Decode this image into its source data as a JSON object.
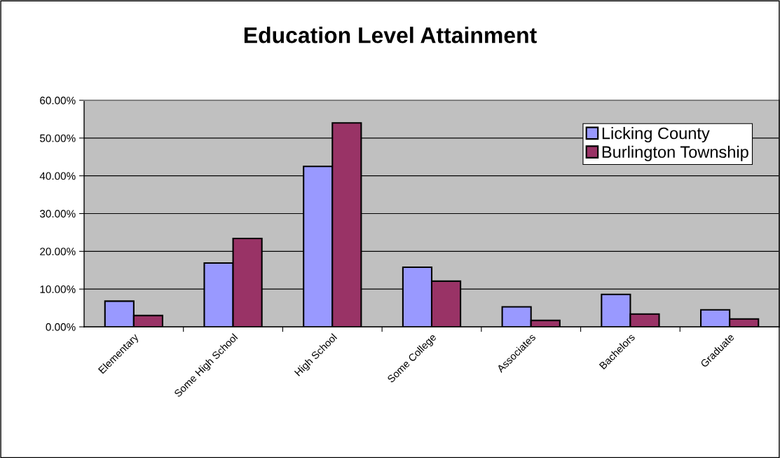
{
  "chart_data": {
    "type": "bar",
    "title": "Education Level Attainment",
    "categories": [
      "Elementary",
      "Some High School",
      "High School",
      "Some College",
      "Associates",
      "Bachelors",
      "Graduate"
    ],
    "series": [
      {
        "name": "Licking County",
        "color": "#9999ff",
        "values": [
          6.8,
          16.9,
          42.5,
          15.8,
          5.3,
          8.6,
          4.5
        ]
      },
      {
        "name": "Burlington Township",
        "color": "#993366",
        "values": [
          3.0,
          23.4,
          54.0,
          12.1,
          1.7,
          3.4,
          2.1
        ]
      }
    ],
    "ylim": [
      0,
      60
    ],
    "yticks": [
      {
        "value": 0,
        "label": "0.00%"
      },
      {
        "value": 10,
        "label": "10.00%"
      },
      {
        "value": 20,
        "label": "20.00%"
      },
      {
        "value": 30,
        "label": "30.00%"
      },
      {
        "value": 40,
        "label": "40.00%"
      },
      {
        "value": 50,
        "label": "50.00%"
      },
      {
        "value": 60,
        "label": "60.00%"
      }
    ],
    "grid": "y",
    "legend": "top right"
  }
}
